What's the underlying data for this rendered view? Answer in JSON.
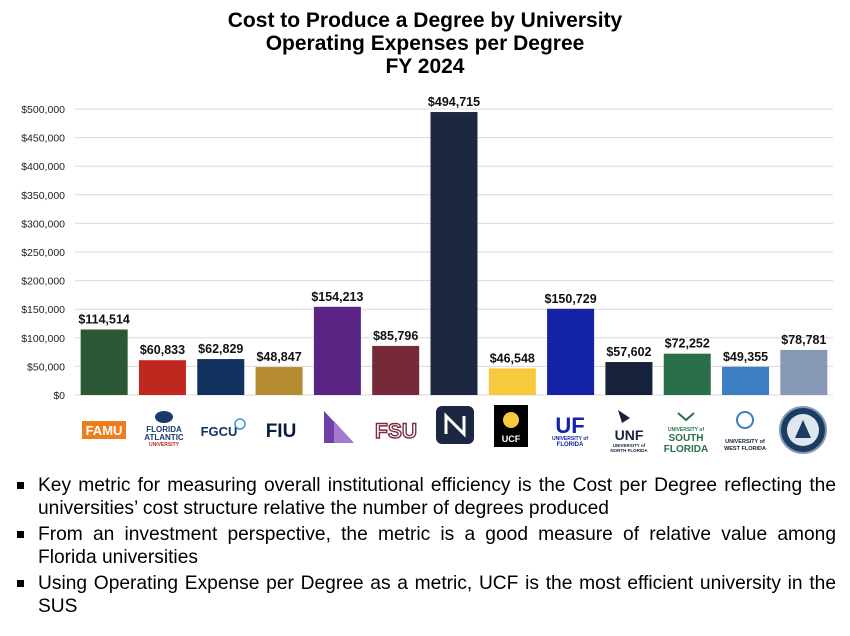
{
  "title_lines": [
    "Cost to Produce a Degree by University",
    "Operating Expenses per Degree",
    "FY 2024"
  ],
  "chart_data": {
    "type": "bar",
    "title": "Cost to Produce a Degree by University — Operating Expenses per Degree — FY 2024",
    "categories": [
      "FAMU",
      "FAU",
      "FGCU",
      "FIU",
      "NCF",
      "FSU",
      "Poly",
      "UCF",
      "UF",
      "UNF",
      "USF",
      "UWF",
      "UNF-Pelican"
    ],
    "values": [
      114514,
      60833,
      62829,
      48847,
      154213,
      85796,
      494715,
      46548,
      150729,
      57602,
      72252,
      49355,
      78781
    ],
    "value_labels": [
      "$114,514",
      "$60,833",
      "$62,829",
      "$48,847",
      "$154,213",
      "$85,796",
      "$494,715",
      "$46,548",
      "$150,729",
      "$57,602",
      "$72,252",
      "$49,355",
      "$78,781"
    ],
    "colors": [
      "#2c5734",
      "#c0281f",
      "#11315f",
      "#b58c32",
      "#5a2484",
      "#762a39",
      "#1e2741",
      "#f8c93c",
      "#1423a5",
      "#15223a",
      "#2a6f47",
      "#3c7ec1",
      "#8698b4"
    ],
    "ylim": [
      0,
      500000
    ],
    "yticks": [
      0,
      50000,
      100000,
      150000,
      200000,
      250000,
      300000,
      350000,
      400000,
      450000,
      500000
    ],
    "ytick_labels": [
      "$0",
      "$50,000",
      "$100,000",
      "$150,000",
      "$200,000",
      "$250,000",
      "$300,000",
      "$350,000",
      "$400,000",
      "$450,000",
      "$500,000"
    ],
    "grid": true,
    "legend": "none"
  },
  "logos": {
    "famu": "FAMU",
    "fau": [
      "FLORIDA",
      "ATLANTIC",
      "UNIVERSITY"
    ],
    "fgcu": "FGCU",
    "fiu": "FIU",
    "fsu": "FSU",
    "ucf": "UCF",
    "uf": [
      "UF",
      "UNIVERSITY of",
      "FLORIDA"
    ],
    "unf": [
      "UNF",
      "UNIVERSITY of",
      "NORTH FLORIDA"
    ],
    "usf": [
      "UNIVERSITY of",
      "SOUTH",
      "FLORIDA"
    ],
    "uwf": [
      "UNIVERSITY of",
      "WEST FLORIDA"
    ]
  },
  "bullets": [
    "Key metric for measuring overall institutional efficiency is the Cost per Degree reflecting the universities’ cost structure relative the number of degrees produced",
    "From an investment perspective, the metric is a good measure of relative value among Florida universities",
    "Using Operating Expense per Degree as a metric, UCF is the most efficient university in the SUS"
  ]
}
